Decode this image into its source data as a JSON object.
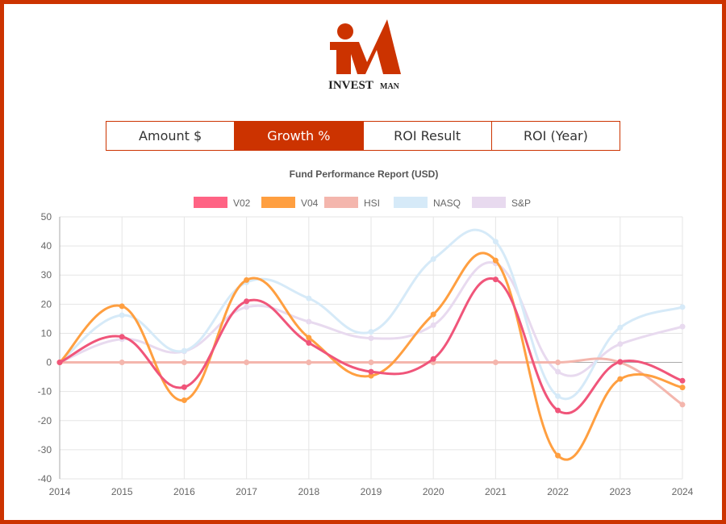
{
  "brand": {
    "logo_text_1": "INVEST",
    "logo_text_2": "MAN",
    "accent": "#cc3300"
  },
  "tabs": [
    {
      "label": "Amount $",
      "active": false
    },
    {
      "label": "Growth %",
      "active": true
    },
    {
      "label": "ROI Result",
      "active": false
    },
    {
      "label": "ROI (Year)",
      "active": false
    }
  ],
  "chart_data": {
    "type": "line",
    "title": "Fund Performance Report (USD)",
    "legend_position": "top",
    "grid": true,
    "x": [
      "2014",
      "2015",
      "2016",
      "2017",
      "2018",
      "2019",
      "2020",
      "2021",
      "2022",
      "2023",
      "2024"
    ],
    "ylim": [
      -40,
      50
    ],
    "yticks": [
      50,
      40,
      30,
      20,
      10,
      0,
      -10,
      -20,
      -30,
      -40
    ],
    "series": [
      {
        "name": "V02",
        "color": "#f0557a",
        "legend_color": "#ff6384",
        "values": [
          0,
          8.8,
          -8.5,
          21,
          6.7,
          -3.2,
          1.2,
          28.5,
          -16.5,
          0.2,
          -6.3
        ]
      },
      {
        "name": "V04",
        "color": "#ff9f40",
        "legend_color": "#ff9f40",
        "values": [
          0,
          19.3,
          -13,
          28.3,
          8.5,
          -4.6,
          16.5,
          35,
          -32,
          -5.7,
          -8.6
        ]
      },
      {
        "name": "HSI",
        "color": "#f4b6ad",
        "legend_color": "#f4b6ad",
        "values": [
          0,
          0,
          0,
          0,
          0,
          0,
          0,
          0,
          0,
          0,
          -14.5
        ]
      },
      {
        "name": "NASQ",
        "color": "#d6eaf8",
        "legend_color": "#d6eaf8",
        "values": [
          0,
          16.2,
          4,
          27.5,
          22,
          10.5,
          35.5,
          41.5,
          -11.6,
          12,
          19
        ]
      },
      {
        "name": "S&P",
        "color": "#e8daef",
        "legend_color": "#e8daef",
        "values": [
          0,
          8,
          3.8,
          19,
          14,
          8.3,
          12.8,
          34,
          -3.2,
          6.3,
          12.3
        ]
      }
    ]
  }
}
